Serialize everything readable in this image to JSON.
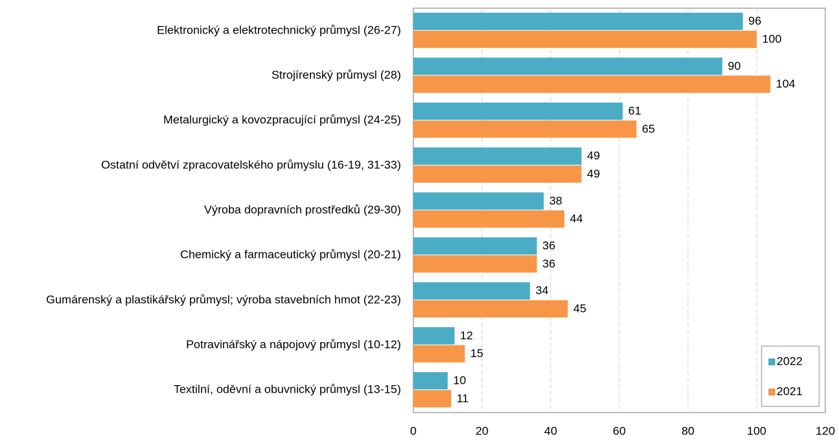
{
  "chart_data": {
    "type": "bar",
    "orientation": "horizontal",
    "categories": [
      "Elektronický a elektrotechnický průmysl (26-27)",
      "Strojírenský průmysl (28)",
      "Metalurgický a kovozpracující průmysl (24-25)",
      "Ostatní odvětví zpracovatelského průmyslu (16-19, 31-33)",
      "Výroba dopravních prostředků (29-30)",
      "Chemický a farmaceutický průmysl (20-21)",
      "Gumárenský a plastikářský průmysl; výroba stavebních hmot (22-23)",
      "Potravinářský a nápojový průmysl (10-12)",
      "Textilní, oděvní a obuvnický průmysl (13-15)"
    ],
    "series": [
      {
        "name": "2022",
        "color": "#4bacc6",
        "values": [
          96,
          90,
          61,
          49,
          38,
          36,
          34,
          12,
          10
        ]
      },
      {
        "name": "2021",
        "color": "#f79646",
        "values": [
          100,
          104,
          65,
          49,
          44,
          36,
          45,
          15,
          11
        ]
      }
    ],
    "xlim": [
      0,
      120
    ],
    "xticks": [
      0,
      20,
      40,
      60,
      80,
      100,
      120
    ],
    "grid": true,
    "legend": "lower right"
  }
}
